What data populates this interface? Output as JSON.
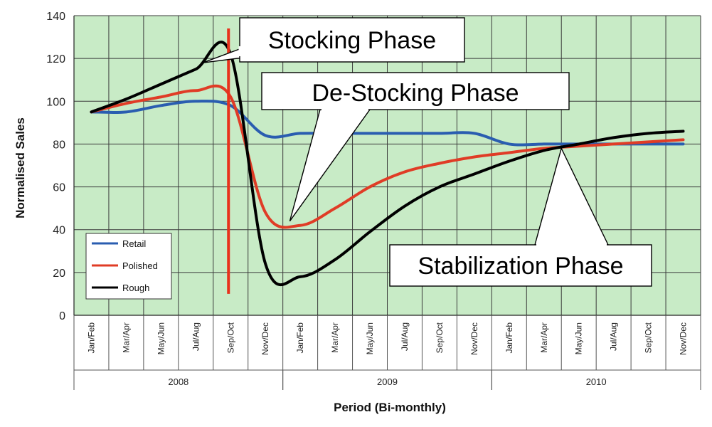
{
  "chart_data": {
    "type": "line",
    "title": "",
    "xlabel": "Period (Bi-monthly)",
    "ylabel": "Normalised Sales",
    "ylim": [
      0,
      140
    ],
    "yticks": [
      0,
      20,
      40,
      60,
      80,
      100,
      120,
      140
    ],
    "grid": true,
    "legend_position": "bottom-left",
    "categories": [
      "Jan/Feb",
      "Mar/Apr",
      "May/Jun",
      "Jul/Aug",
      "Sep/Oct",
      "Nov/Dec",
      "Jan/Feb",
      "Mar/Apr",
      "May/Jun",
      "Jul/Aug",
      "Sep/Oct",
      "Nov/Dec",
      "Jan/Feb",
      "Mar/Apr",
      "May/Jun",
      "Jul/Aug",
      "Sep/Oct",
      "Nov/Dec"
    ],
    "year_groups": [
      {
        "label": "2008",
        "start": 0,
        "end": 5
      },
      {
        "label": "2009",
        "start": 6,
        "end": 11
      },
      {
        "label": "2010",
        "start": 12,
        "end": 17
      }
    ],
    "series": [
      {
        "name": "Retail",
        "color": "#2a5db0",
        "values": [
          95,
          95,
          98,
          100,
          98,
          84,
          85,
          85,
          85,
          85,
          85,
          85,
          80,
          80,
          80,
          80,
          80,
          80
        ]
      },
      {
        "name": "Polished",
        "color": "#e03c26",
        "values": [
          95,
          99,
          102,
          105,
          102,
          48,
          42,
          50,
          60,
          67,
          71,
          74,
          76,
          78,
          79,
          80,
          81,
          82
        ]
      },
      {
        "name": "Rough",
        "color": "#000000",
        "values": [
          95,
          101,
          108,
          115,
          122,
          24,
          18,
          26,
          39,
          51,
          60,
          66,
          72,
          77,
          80,
          83,
          85,
          86
        ]
      }
    ],
    "marker_line": {
      "category_index": 4,
      "color": "#e8321c",
      "from": 10,
      "to": 134
    },
    "annotations": [
      {
        "text": "Stocking Phase",
        "points_to": {
          "category_index": 3.2,
          "value": 118
        }
      },
      {
        "text": "De-Stocking Phase",
        "points_to": {
          "category_index": 5.7,
          "value": 44
        }
      },
      {
        "text": "Stabilization Phase",
        "points_to": {
          "category_index": 13.5,
          "value": 78
        }
      }
    ]
  }
}
